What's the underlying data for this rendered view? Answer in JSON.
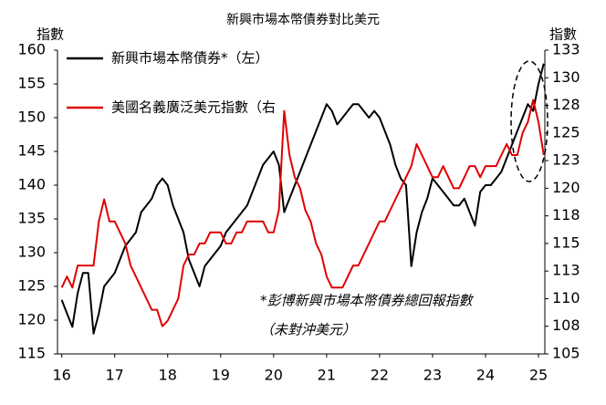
{
  "chart_data": {
    "type": "line",
    "title": "新興市場本幣債券對比美元",
    "ylabel": "指數",
    "y2label": "指數",
    "annotations": [
      "*彭博新興市場本幣債券總回報指數",
      "（未對沖美元）"
    ],
    "legend": "upper left",
    "x": [
      16.0,
      16.1,
      16.2,
      16.3,
      16.4,
      16.5,
      16.6,
      16.7,
      16.8,
      16.9,
      17.0,
      17.1,
      17.2,
      17.3,
      17.4,
      17.5,
      17.6,
      17.7,
      17.8,
      17.9,
      18.0,
      18.1,
      18.2,
      18.3,
      18.4,
      18.5,
      18.6,
      18.7,
      18.8,
      18.9,
      19.0,
      19.1,
      19.2,
      19.3,
      19.4,
      19.5,
      19.6,
      19.7,
      19.8,
      19.9,
      20.0,
      20.1,
      20.2,
      20.3,
      20.4,
      20.5,
      20.6,
      20.7,
      20.8,
      20.9,
      21.0,
      21.1,
      21.2,
      21.3,
      21.4,
      21.5,
      21.6,
      21.7,
      21.8,
      21.9,
      22.0,
      22.1,
      22.2,
      22.3,
      22.4,
      22.5,
      22.6,
      22.7,
      22.8,
      22.9,
      23.0,
      23.1,
      23.2,
      23.3,
      23.4,
      23.5,
      23.6,
      23.7,
      23.8,
      23.9,
      24.0,
      24.1,
      24.2,
      24.3,
      24.4,
      24.5,
      24.6,
      24.7,
      24.8,
      24.9,
      25.0,
      25.1
    ],
    "series": [
      {
        "name": "新興市場本幣債券*（左）",
        "color": "#000000",
        "axis": "y",
        "values": [
          123,
          121,
          119,
          124,
          127,
          127,
          118,
          121,
          125,
          126,
          127,
          129,
          131,
          132,
          133,
          136,
          137,
          138,
          140,
          141,
          140,
          137,
          135,
          133,
          129,
          127,
          125,
          128,
          129,
          130,
          131,
          133,
          134,
          135,
          136,
          137,
          139,
          141,
          143,
          144,
          145,
          143,
          136,
          138,
          140,
          142,
          144,
          146,
          148,
          150,
          152,
          151,
          149,
          150,
          151,
          152,
          152,
          151,
          150,
          151,
          150,
          148,
          146,
          143,
          141,
          140,
          128,
          133,
          136,
          138,
          141,
          140,
          139,
          138,
          137,
          137,
          138,
          136,
          134,
          139,
          140,
          140,
          141,
          142,
          144,
          146,
          148,
          150,
          152,
          151,
          155,
          158
        ]
      },
      {
        "name": "美國名義廣泛美元指數（右",
        "color": "#e00000",
        "axis": "y2",
        "values": [
          111,
          112,
          111,
          113,
          113,
          113,
          113,
          117,
          119,
          117,
          117,
          116,
          115,
          113,
          112,
          111,
          110,
          109,
          109,
          107.5,
          108,
          109,
          110,
          113,
          114,
          114,
          115,
          115,
          116,
          116,
          116,
          115,
          115,
          116,
          116,
          117,
          117,
          117,
          117,
          116,
          116,
          118,
          127,
          123,
          121,
          120,
          118,
          117,
          115,
          114,
          112,
          111,
          111,
          111,
          112,
          113,
          113,
          114,
          115,
          116,
          117,
          117,
          118,
          119,
          120,
          121,
          122,
          124,
          123,
          122,
          121,
          121,
          122,
          121,
          120,
          120,
          121,
          122,
          122,
          121,
          122,
          122,
          122,
          123,
          124,
          123,
          123,
          125,
          126,
          128,
          126,
          123
        ]
      }
    ],
    "xlim": [
      15.92,
      25.12
    ],
    "xticks": [
      16,
      17,
      18,
      19,
      20,
      21,
      22,
      23,
      24,
      25
    ],
    "ylim": [
      115,
      160
    ],
    "yticks": [
      115,
      120,
      125,
      130,
      135,
      140,
      145,
      150,
      155,
      160
    ],
    "y2lim": [
      105,
      132.5
    ],
    "y2ticks": [
      105,
      {
        "value": 107.5,
        "label": "108"
      },
      110,
      {
        "value": 112.5,
        "label": "113"
      },
      115,
      {
        "value": 117.5,
        "label": "118"
      },
      120,
      {
        "value": 122.5,
        "label": "123"
      },
      125,
      {
        "value": 127.5,
        "label": "128"
      },
      130,
      {
        "value": 132.5,
        "label": "133"
      }
    ]
  }
}
